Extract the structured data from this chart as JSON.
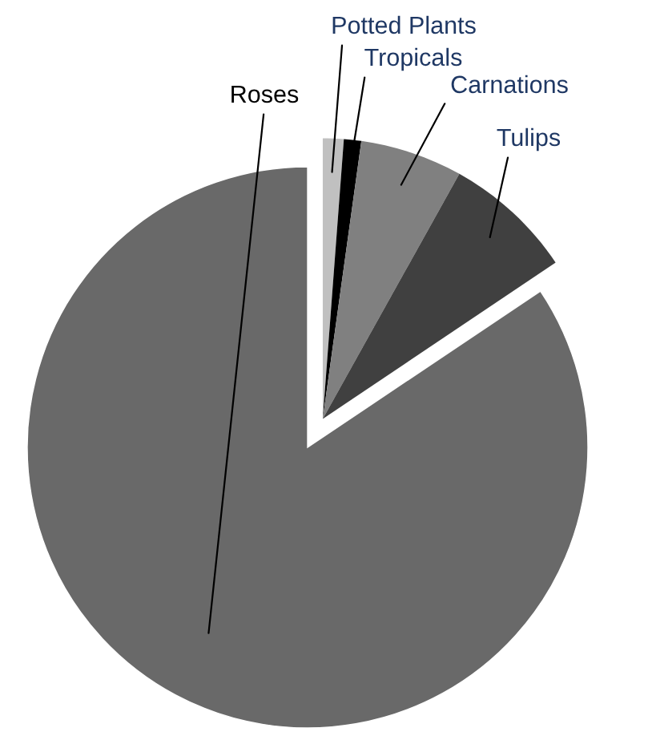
{
  "chart_data": {
    "type": "pie",
    "categories": [
      "Potted Plants",
      "Tropicals",
      "Carnations",
      "Tulips",
      "Roses"
    ],
    "values": [
      1.2,
      1.0,
      5.9,
      7.5,
      84.4
    ],
    "colors": [
      "#c0c0c0",
      "#000000",
      "#808080",
      "#404040",
      "#696969"
    ]
  }
}
